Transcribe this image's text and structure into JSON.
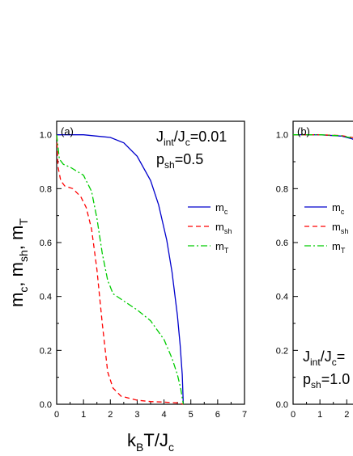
{
  "chart_data": [
    {
      "panel": "a",
      "type": "line",
      "panel_label": "(a)",
      "annotation_lines": [
        {
          "base": "J",
          "sub": "int",
          "mid": "/J",
          "sub2": "c",
          "tail": "=0.01"
        },
        {
          "base": "p",
          "sub": "sh",
          "mid": "",
          "sub2": "",
          "tail": "=0.5"
        }
      ],
      "xlim": [
        0,
        7
      ],
      "ylim": [
        0,
        1.05
      ],
      "x_ticks": [
        0,
        1,
        2,
        3,
        4,
        5,
        6,
        7
      ],
      "y_ticks": [
        "0.0",
        "0.2",
        "0.4",
        "0.6",
        "0.8",
        "1.0"
      ],
      "legend_position": "right",
      "series": [
        {
          "name": "m",
          "name_sub": "c",
          "color": "#0000cc",
          "dash": "solid",
          "x": [
            0,
            1,
            2,
            2.5,
            3,
            3.5,
            3.8,
            4.1,
            4.3,
            4.5,
            4.6,
            4.68,
            4.72
          ],
          "y": [
            1.0,
            1.0,
            0.99,
            0.97,
            0.92,
            0.83,
            0.74,
            0.61,
            0.49,
            0.33,
            0.22,
            0.11,
            0.0
          ]
        },
        {
          "name": "m",
          "name_sub": "sh",
          "color": "#ff0000",
          "dash": "dashed",
          "x": [
            0,
            0.05,
            0.15,
            0.3,
            0.6,
            0.9,
            1.1,
            1.3,
            1.5,
            1.7,
            1.9,
            2.1,
            2.4,
            3.0,
            3.5,
            4.0,
            4.5,
            4.72
          ],
          "y": [
            1.0,
            0.88,
            0.83,
            0.81,
            0.8,
            0.77,
            0.73,
            0.65,
            0.5,
            0.3,
            0.12,
            0.06,
            0.03,
            0.015,
            0.01,
            0.008,
            0.005,
            0.0
          ]
        },
        {
          "name": "m",
          "name_sub": "T",
          "color": "#00cc00",
          "dash": "dashdot",
          "x": [
            0,
            0.1,
            0.25,
            0.5,
            1.0,
            1.3,
            1.5,
            1.7,
            1.9,
            2.1,
            2.4,
            3.0,
            3.5,
            4.0,
            4.3,
            4.5,
            4.62,
            4.72
          ],
          "y": [
            1.0,
            0.91,
            0.89,
            0.88,
            0.85,
            0.79,
            0.69,
            0.56,
            0.46,
            0.41,
            0.39,
            0.35,
            0.31,
            0.24,
            0.17,
            0.11,
            0.06,
            0.0
          ]
        }
      ]
    },
    {
      "panel": "b",
      "type": "line",
      "panel_label": "(b)",
      "annotation_lines": [
        {
          "base": "J",
          "sub": "int",
          "mid": "/J",
          "sub2": "c",
          "tail": "="
        },
        {
          "base": "p",
          "sub": "sh",
          "mid": "",
          "sub2": "",
          "tail": "=1.0"
        }
      ],
      "xlim": [
        0,
        7
      ],
      "ylim": [
        0,
        1.05
      ],
      "x_ticks": [
        0,
        1,
        2
      ],
      "y_ticks": [
        "0.0",
        "0.2",
        "0.4",
        "0.6",
        "0.8",
        "1.0"
      ],
      "legend_position": "left",
      "series": [
        {
          "name": "m",
          "name_sub": "c",
          "color": "#0000cc",
          "dash": "solid",
          "x": [
            0,
            1.0,
            1.8,
            2.2,
            2.5
          ],
          "y": [
            1.0,
            1.0,
            0.995,
            0.985,
            0.97
          ]
        },
        {
          "name": "m",
          "name_sub": "sh",
          "color": "#ff0000",
          "dash": "dashed",
          "x": [
            0,
            1.0,
            1.8,
            2.2,
            2.5
          ],
          "y": [
            1.0,
            1.0,
            0.997,
            0.99,
            0.985
          ]
        },
        {
          "name": "m",
          "name_sub": "T",
          "color": "#00cc00",
          "dash": "dashdot",
          "x": [
            0,
            1.0,
            1.8,
            2.2,
            2.5
          ],
          "y": [
            1.0,
            1.0,
            0.996,
            0.988,
            0.978
          ]
        }
      ]
    }
  ],
  "axis_labels": {
    "y": [
      {
        "base": "m",
        "sub": "c"
      },
      {
        "sep": ", "
      },
      {
        "base": "m",
        "sub": "sh"
      },
      {
        "sep": ", "
      },
      {
        "base": "m",
        "sub": "T"
      }
    ],
    "x": {
      "k": "k",
      "k_sub": "B",
      "rest": "T/J",
      "rest_sub": "c"
    }
  }
}
